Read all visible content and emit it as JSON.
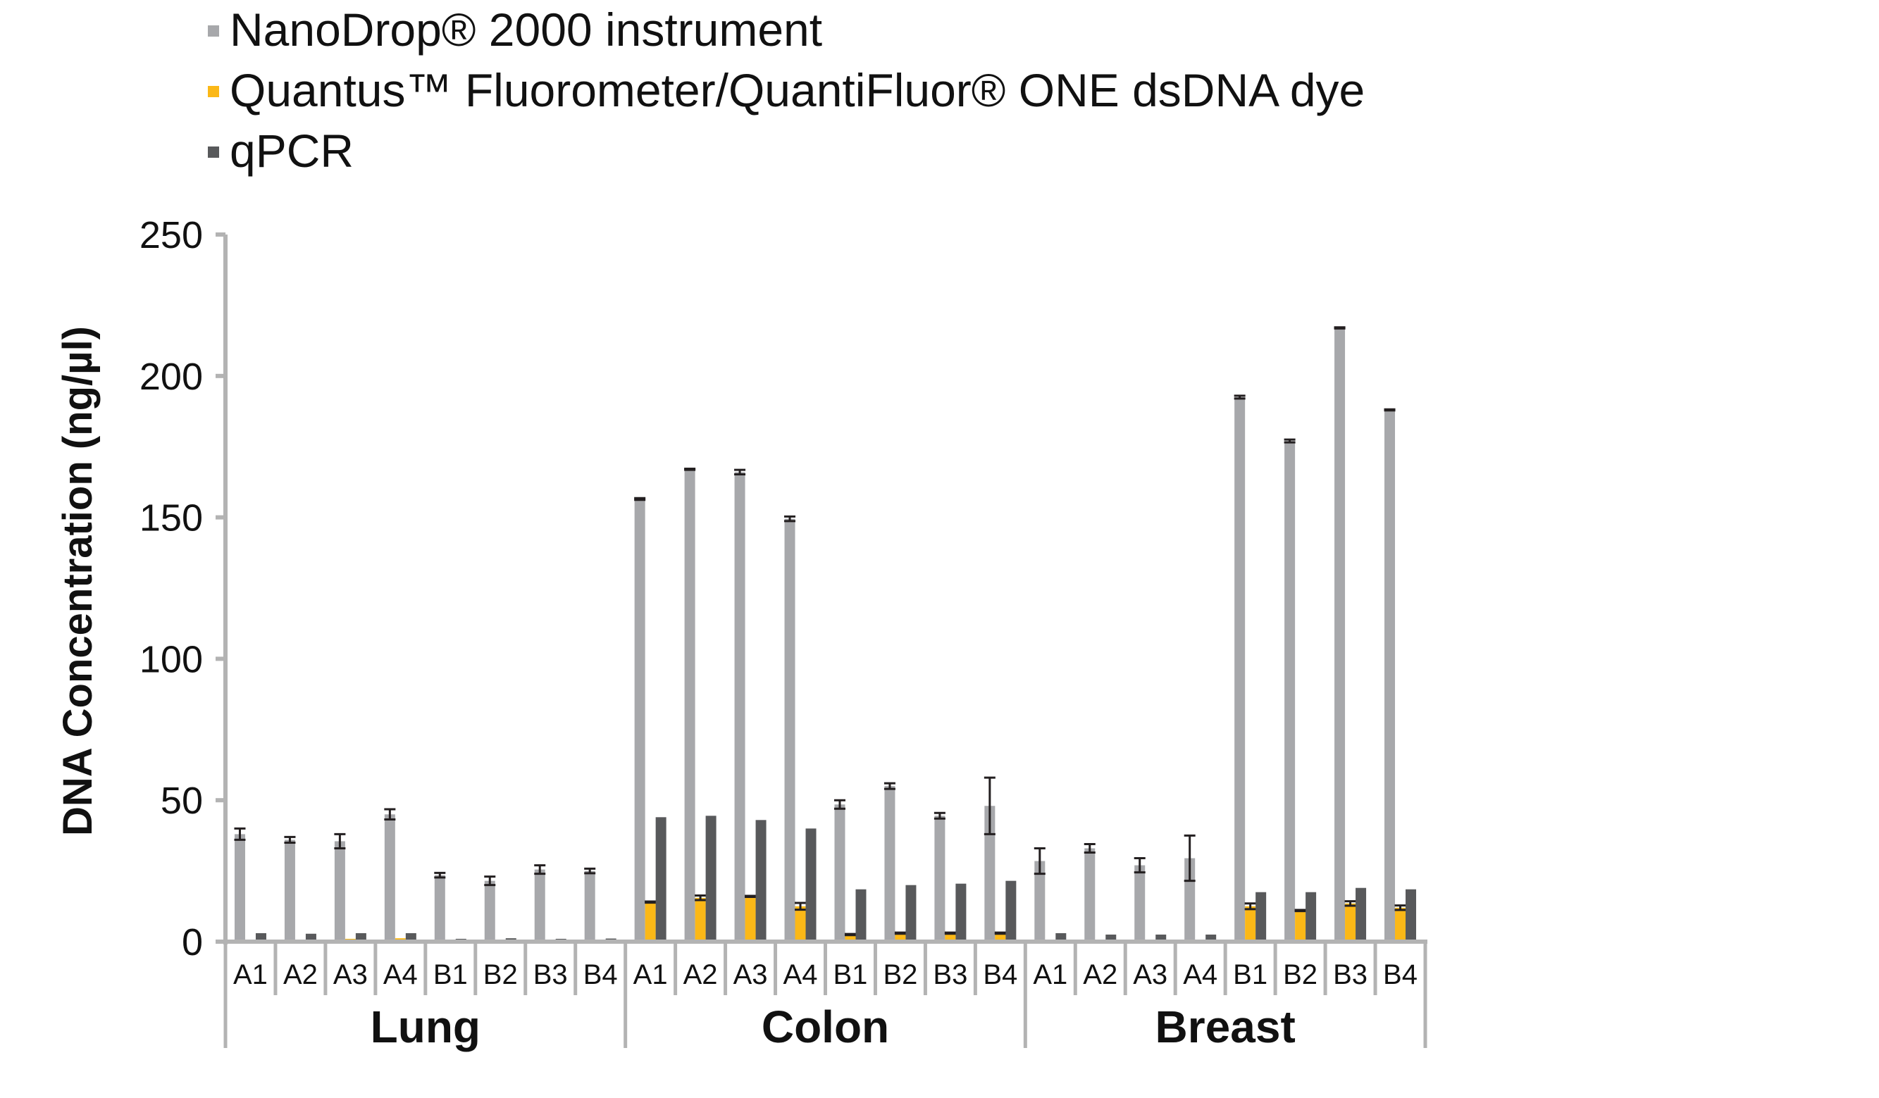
{
  "chart_data": {
    "type": "bar",
    "title": "",
    "xlabel": "",
    "ylabel": "DNA Concentration (ng/µl)",
    "ylim": [
      0,
      250
    ],
    "yticks": [
      "0",
      "50",
      "100",
      "150",
      "200",
      "250"
    ],
    "grid": false,
    "legend_position": "top-left",
    "groups": [
      {
        "name": "Lung",
        "categories": [
          "A1",
          "A2",
          "A3",
          "A4",
          "B1",
          "B2",
          "B3",
          "B4"
        ]
      },
      {
        "name": "Colon",
        "categories": [
          "A1",
          "A2",
          "A3",
          "A4",
          "B1",
          "B2",
          "B3",
          "B4"
        ]
      },
      {
        "name": "Breast",
        "categories": [
          "A1",
          "A2",
          "A3",
          "A4",
          "B1",
          "B2",
          "B3",
          "B4"
        ]
      }
    ],
    "series": [
      {
        "name": "NanoDrop® 2000 instrument",
        "color": "#a7a8ab",
        "values": [
          38,
          36,
          35.5,
          45,
          23.5,
          21.5,
          25.5,
          25,
          156.5,
          167,
          166,
          149.5,
          48.5,
          55,
          44.5,
          48,
          28.5,
          33,
          27,
          29.5,
          192.5,
          177,
          217,
          188
        ],
        "errors": [
          2,
          1,
          2.5,
          1.8,
          0.8,
          1.5,
          1.5,
          0.8,
          0.3,
          0.2,
          0.8,
          0.8,
          1.5,
          1,
          1,
          10,
          4.5,
          1.5,
          2.5,
          8,
          0.5,
          0.5,
          0.2,
          0.2
        ]
      },
      {
        "name": "Quantus™ Fluorometer/QuantiFluor® ONE dsDNA dye",
        "color": "#fbb817",
        "values": [
          0.5,
          0.7,
          1,
          1.2,
          0,
          0,
          0,
          0,
          14,
          15.5,
          16,
          12.5,
          2.5,
          3,
          3,
          3,
          0.2,
          0.2,
          0.2,
          0.2,
          12.5,
          11,
          13.5,
          12
        ],
        "errors": [
          0,
          0,
          0,
          0,
          0,
          0,
          0,
          0,
          0.2,
          0.8,
          0.2,
          1.2,
          0.2,
          0.2,
          0.2,
          0.2,
          0,
          0,
          0,
          0,
          1,
          0.2,
          0.8,
          0.8
        ]
      },
      {
        "name": "qPCR",
        "color": "#58595b",
        "values": [
          3,
          2.8,
          3,
          3,
          1,
          1.2,
          1,
          1.1,
          44,
          44.5,
          43,
          40,
          18.5,
          20,
          20.5,
          21.5,
          3,
          2.5,
          2.5,
          2.5,
          17.5,
          17.5,
          19,
          18.5
        ],
        "errors": []
      }
    ]
  }
}
